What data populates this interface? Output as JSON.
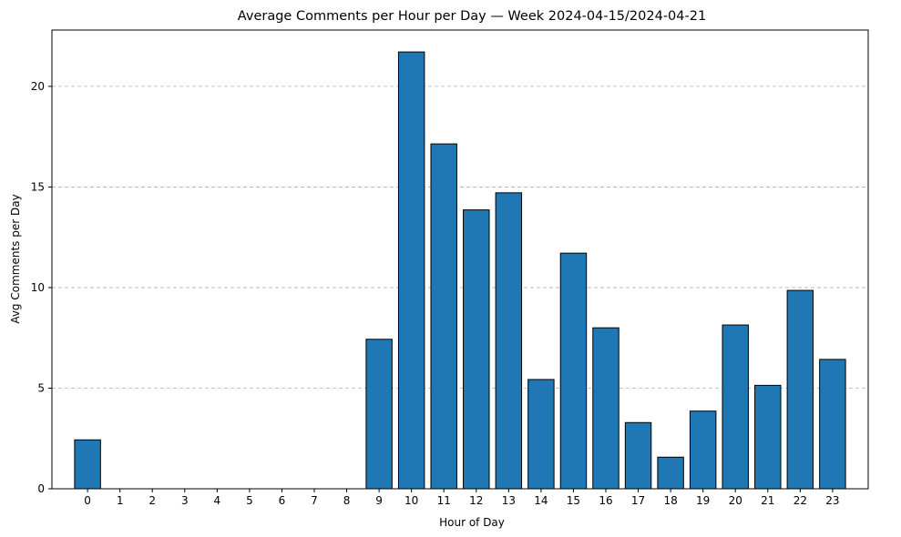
{
  "chart_data": {
    "type": "bar",
    "title": "Average Comments per Hour per Day — Week 2024-04-15/2024-04-21",
    "xlabel": "Hour of Day",
    "ylabel": "Avg Comments per Day",
    "categories": [
      "0",
      "1",
      "2",
      "3",
      "4",
      "5",
      "6",
      "7",
      "8",
      "9",
      "10",
      "11",
      "12",
      "13",
      "14",
      "15",
      "16",
      "17",
      "18",
      "19",
      "20",
      "21",
      "22",
      "23"
    ],
    "values": [
      2.43,
      0,
      0,
      0,
      0,
      0,
      0,
      0,
      0,
      7.43,
      21.71,
      17.14,
      13.86,
      14.71,
      5.43,
      11.71,
      8.0,
      3.29,
      1.57,
      3.86,
      8.14,
      5.14,
      9.86,
      6.43
    ],
    "ylim": [
      0,
      22.8
    ],
    "yticks": [
      "0",
      "5",
      "10",
      "15",
      "20"
    ],
    "grid": "y-dashed",
    "legend": "none",
    "bar_color": "#1f77b4",
    "edge_color": "#000000",
    "grid_color": "#b0b0b0"
  }
}
